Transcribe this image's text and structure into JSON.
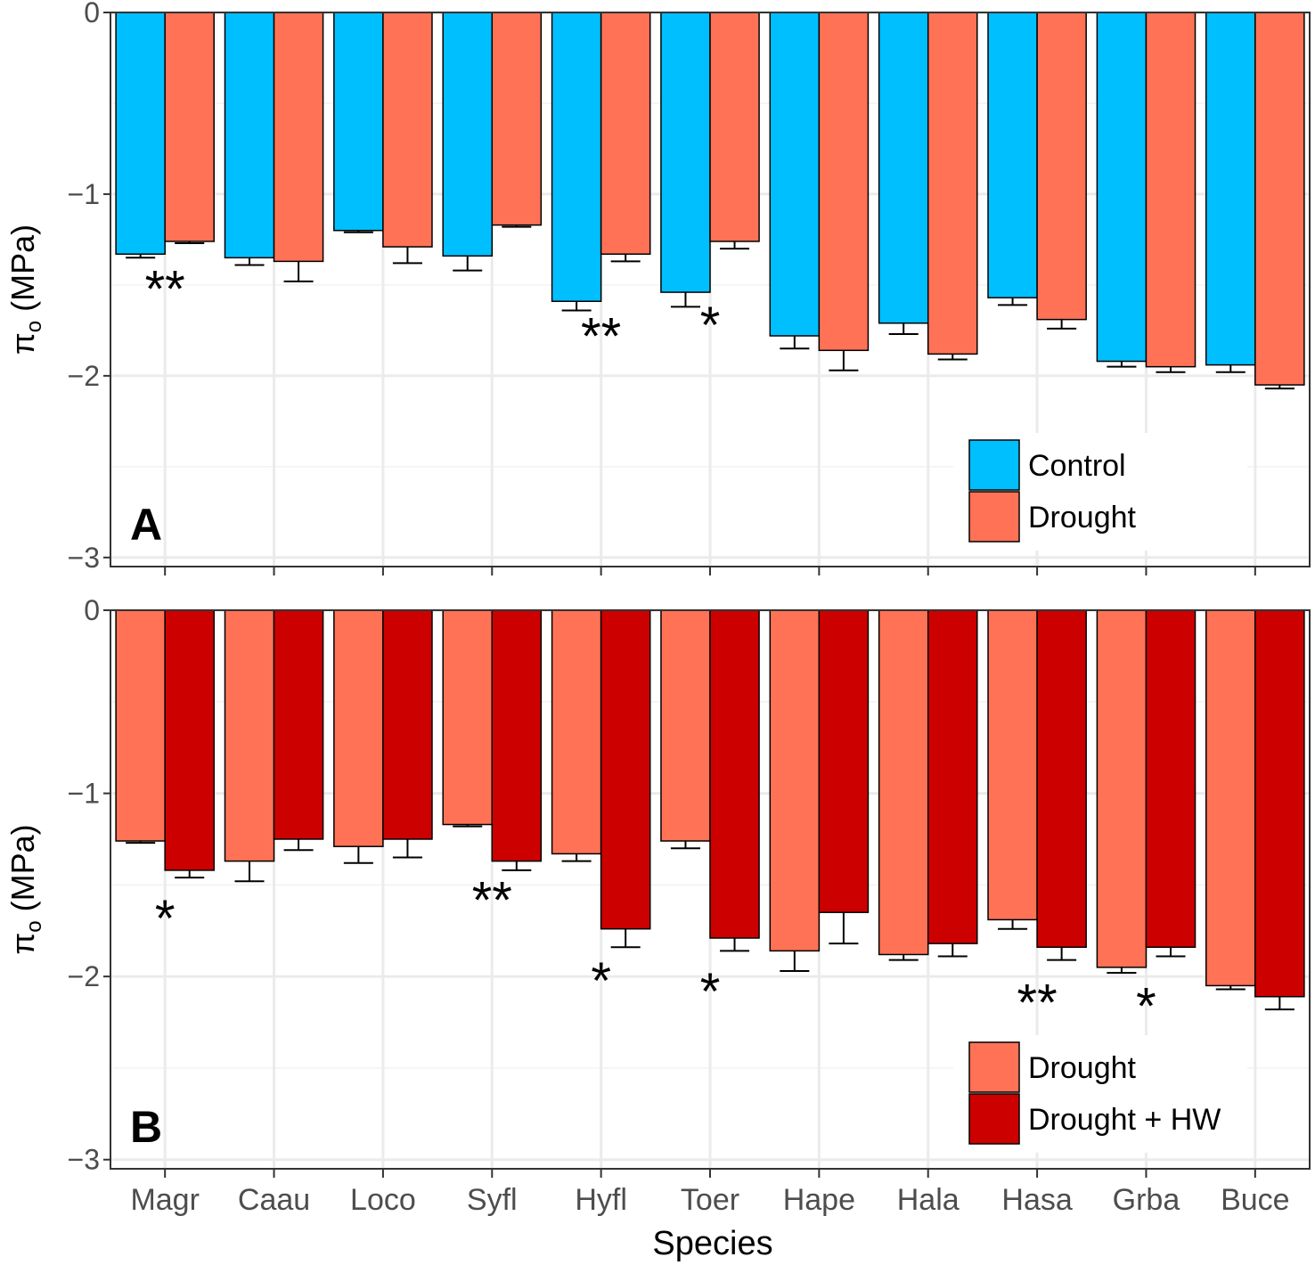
{
  "chart_data": [
    {
      "type": "bar",
      "panel_label": "A",
      "categories": [
        "Magr",
        "Caau",
        "Loco",
        "Syfl",
        "Hyfl",
        "Toer",
        "Hape",
        "Hala",
        "Hasa",
        "Grba",
        "Buce"
      ],
      "series": [
        {
          "name": "Control",
          "color": "#00bfff",
          "values": [
            -1.33,
            -1.35,
            -1.2,
            -1.34,
            -1.59,
            -1.54,
            -1.78,
            -1.71,
            -1.57,
            -1.92,
            -1.94
          ],
          "errors": [
            0.02,
            0.04,
            0.01,
            0.08,
            0.05,
            0.08,
            0.07,
            0.06,
            0.04,
            0.03,
            0.04
          ]
        },
        {
          "name": "Drought",
          "color": "#ff7256",
          "values": [
            -1.26,
            -1.37,
            -1.29,
            -1.17,
            -1.33,
            -1.26,
            -1.86,
            -1.88,
            -1.69,
            -1.95,
            -2.05
          ],
          "errors": [
            0.01,
            0.11,
            0.09,
            0.01,
            0.04,
            0.04,
            0.11,
            0.03,
            0.05,
            0.03,
            0.02
          ]
        }
      ],
      "significance": [
        {
          "category": "Magr",
          "label": "**",
          "y": -1.62
        },
        {
          "category": "Hyfl",
          "label": "**",
          "y": -1.88
        },
        {
          "category": "Toer",
          "label": "*",
          "y": -1.82
        }
      ],
      "ylim": [
        -3.05,
        0
      ],
      "yticks": [
        0,
        -1,
        -2,
        -3
      ],
      "ytick_labels": [
        "0",
        "−1",
        "−2",
        "−3"
      ],
      "ylabel_symbol": "π",
      "ylabel_sub": "o",
      "ylabel_unit": " (MPa)",
      "legend_position": "bottom-right",
      "grid": true
    },
    {
      "type": "bar",
      "panel_label": "B",
      "categories": [
        "Magr",
        "Caau",
        "Loco",
        "Syfl",
        "Hyfl",
        "Toer",
        "Hape",
        "Hala",
        "Hasa",
        "Grba",
        "Buce"
      ],
      "series": [
        {
          "name": "Drought",
          "color": "#ff7256",
          "values": [
            -1.26,
            -1.37,
            -1.29,
            -1.17,
            -1.33,
            -1.26,
            -1.86,
            -1.88,
            -1.69,
            -1.95,
            -2.05
          ],
          "errors": [
            0.01,
            0.11,
            0.09,
            0.01,
            0.04,
            0.04,
            0.11,
            0.03,
            0.05,
            0.03,
            0.02
          ]
        },
        {
          "name": "Drought + HW",
          "color": "#cd0000",
          "values": [
            -1.42,
            -1.25,
            -1.25,
            -1.37,
            -1.74,
            -1.79,
            -1.65,
            -1.82,
            -1.84,
            -1.84,
            -2.11
          ],
          "errors": [
            0.04,
            0.06,
            0.1,
            0.05,
            0.1,
            0.07,
            0.17,
            0.07,
            0.07,
            0.05,
            0.07
          ]
        }
      ],
      "significance": [
        {
          "category": "Magr",
          "label": "*",
          "y": -1.78
        },
        {
          "category": "Syfl",
          "label": "**",
          "y": -1.68
        },
        {
          "category": "Hyfl",
          "label": "*",
          "y": -2.12
        },
        {
          "category": "Toer",
          "label": "*",
          "y": -2.18
        },
        {
          "category": "Hasa",
          "label": "**",
          "y": -2.24
        },
        {
          "category": "Grba",
          "label": "*",
          "y": -2.26
        }
      ],
      "ylim": [
        -3.05,
        0
      ],
      "yticks": [
        0,
        -1,
        -2,
        -3
      ],
      "ytick_labels": [
        "0",
        "−1",
        "−2",
        "−3"
      ],
      "ylabel_symbol": "π",
      "ylabel_sub": "o",
      "ylabel_unit": " (MPa)",
      "xlabel": "Species",
      "legend_position": "bottom-right",
      "grid": true
    }
  ]
}
